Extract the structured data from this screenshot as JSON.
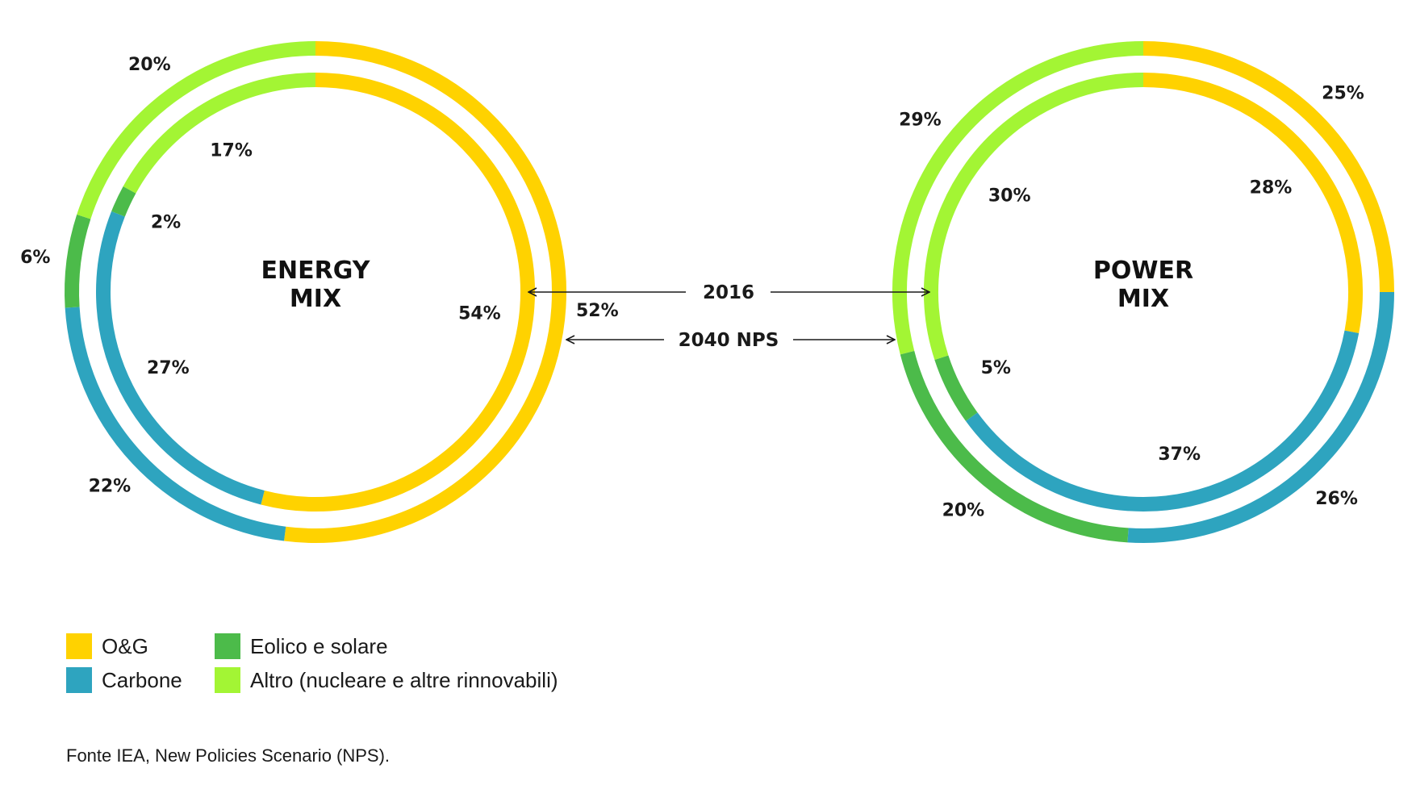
{
  "chart_data": [
    {
      "type": "pie",
      "title": "ENERGY MIX",
      "title_lines": [
        "ENERGY",
        "MIX"
      ],
      "categories": [
        "O&G",
        "Carbone",
        "Eolico e solare",
        "Altro (nucleare e altre rinnovabili)"
      ],
      "series": [
        {
          "name": "2016",
          "ring": "inner",
          "values": [
            54,
            27,
            2,
            17
          ],
          "labels": [
            "54%",
            "27%",
            "2%",
            "17%"
          ]
        },
        {
          "name": "2040 NPS",
          "ring": "outer",
          "values": [
            52,
            22,
            6,
            20
          ],
          "labels": [
            "52%",
            "22%",
            "6%",
            "20%"
          ]
        }
      ]
    },
    {
      "type": "pie",
      "title": "POWER MIX",
      "title_lines": [
        "POWER",
        "MIX"
      ],
      "categories": [
        "O&G",
        "Carbone",
        "Eolico e solare",
        "Altro (nucleare e altre rinnovabili)"
      ],
      "series": [
        {
          "name": "2016",
          "ring": "inner",
          "values": [
            28,
            37,
            5,
            30
          ],
          "labels": [
            "28%",
            "37%",
            "5%",
            "30%"
          ]
        },
        {
          "name": "2040 NPS",
          "ring": "outer",
          "values": [
            25,
            26,
            20,
            29
          ],
          "labels": [
            "25%",
            "26%",
            "20%",
            "29%"
          ]
        }
      ]
    }
  ],
  "arrows": {
    "inner_label": "2016",
    "outer_label": "2040 NPS"
  },
  "legend": [
    {
      "label": "O&G",
      "color": "#FFD200"
    },
    {
      "label": "Carbone",
      "color": "#2EA4BF"
    },
    {
      "label": "Eolico e solare",
      "color": "#4CBB4A"
    },
    {
      "label": "Altro (nucleare e altre rinnovabili)",
      "color": "#A3F534"
    }
  ],
  "source": "Fonte IEA, New Policies Scenario (NPS)."
}
